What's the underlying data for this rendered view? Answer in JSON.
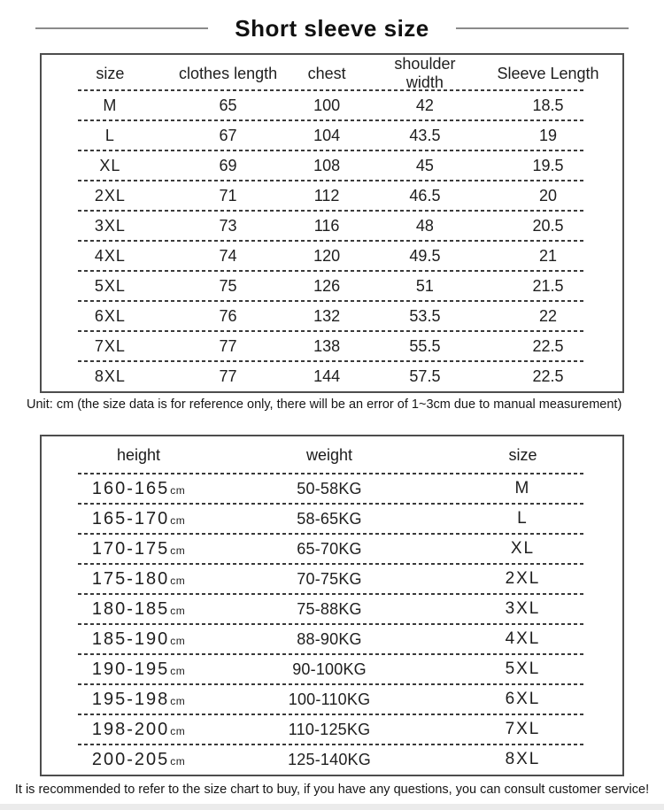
{
  "page": {
    "title": "Short sleeve size"
  },
  "colors": {
    "text": "#1e1e1e",
    "border": "#4d4d4d",
    "title_line": "#8a8a8a",
    "bottom_strip": "#ebebeb"
  },
  "size_table": {
    "headers": [
      "size",
      "clothes length",
      "chest",
      "shoulder width",
      "Sleeve Length"
    ],
    "rows": [
      {
        "size": "M",
        "clothes_length": "65",
        "chest": "100",
        "shoulder_width": "42",
        "sleeve_length": "18.5"
      },
      {
        "size": "L",
        "clothes_length": "67",
        "chest": "104",
        "shoulder_width": "43.5",
        "sleeve_length": "19"
      },
      {
        "size": "XL",
        "clothes_length": "69",
        "chest": "108",
        "shoulder_width": "45",
        "sleeve_length": "19.5"
      },
      {
        "size": "2XL",
        "clothes_length": "71",
        "chest": "112",
        "shoulder_width": "46.5",
        "sleeve_length": "20"
      },
      {
        "size": "3XL",
        "clothes_length": "73",
        "chest": "116",
        "shoulder_width": "48",
        "sleeve_length": "20.5"
      },
      {
        "size": "4XL",
        "clothes_length": "74",
        "chest": "120",
        "shoulder_width": "49.5",
        "sleeve_length": "21"
      },
      {
        "size": "5XL",
        "clothes_length": "75",
        "chest": "126",
        "shoulder_width": "51",
        "sleeve_length": "21.5"
      },
      {
        "size": "6XL",
        "clothes_length": "76",
        "chest": "132",
        "shoulder_width": "53.5",
        "sleeve_length": "22"
      },
      {
        "size": "7XL",
        "clothes_length": "77",
        "chest": "138",
        "shoulder_width": "55.5",
        "sleeve_length": "22.5"
      },
      {
        "size": "8XL",
        "clothes_length": "77",
        "chest": "144",
        "shoulder_width": "57.5",
        "sleeve_length": "22.5"
      }
    ],
    "note": "Unit: cm (the size data is for reference only, there will be an error of 1~3cm due to manual measurement)"
  },
  "fit_table": {
    "headers": [
      "height",
      "weight",
      "size"
    ],
    "height_unit": "cm",
    "rows": [
      {
        "height": "160-165",
        "weight": "50-58KG",
        "size": "M"
      },
      {
        "height": "165-170",
        "weight": "58-65KG",
        "size": "L"
      },
      {
        "height": "170-175",
        "weight": "65-70KG",
        "size": "XL"
      },
      {
        "height": "175-180",
        "weight": "70-75KG",
        "size": "2XL"
      },
      {
        "height": "180-185",
        "weight": "75-88KG",
        "size": "3XL"
      },
      {
        "height": "185-190",
        "weight": "88-90KG",
        "size": "4XL"
      },
      {
        "height": "190-195",
        "weight": "90-100KG",
        "size": "5XL"
      },
      {
        "height": "195-198",
        "weight": "100-110KG",
        "size": "6XL"
      },
      {
        "height": "198-200",
        "weight": "110-125KG",
        "size": "7XL"
      },
      {
        "height": "200-205",
        "weight": "125-140KG",
        "size": "8XL"
      }
    ],
    "note": "It is recommended to refer to the size chart to buy, if you have any questions, you can consult customer service!"
  }
}
